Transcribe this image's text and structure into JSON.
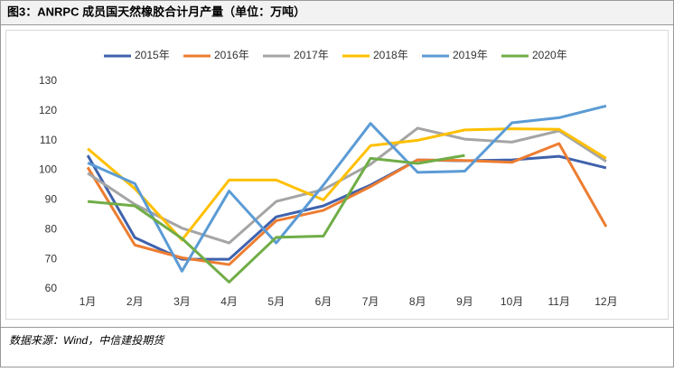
{
  "chart_data": {
    "type": "line",
    "title": "图3：ANRPC 成员国天然橡胶合计月产量（单位：万吨）",
    "source": "数据来源：Wind，中信建投期货",
    "categories": [
      "1月",
      "2月",
      "3月",
      "4月",
      "5月",
      "6月",
      "7月",
      "8月",
      "9月",
      "10月",
      "11月",
      "12月"
    ],
    "series": [
      {
        "name": "2015年",
        "color": "#3f62ad",
        "values": [
          105,
          77.3,
          70,
          70,
          84.3,
          88,
          95,
          103.5,
          103.2,
          103.5,
          104.7,
          100.8
        ]
      },
      {
        "name": "2016年",
        "color": "#ed7d31",
        "values": [
          101,
          74.8,
          70.5,
          68.2,
          83,
          86.5,
          94.5,
          103.5,
          103.3,
          102.7,
          109,
          81
        ]
      },
      {
        "name": "2017年",
        "color": "#a5a5a5",
        "values": [
          99,
          88.5,
          80.5,
          75.5,
          89.5,
          93.5,
          102,
          114.2,
          110.5,
          109.5,
          113.3,
          103
        ]
      },
      {
        "name": "2018年",
        "color": "#ffc000",
        "values": [
          107.3,
          93.8,
          76.5,
          96.7,
          96.7,
          90,
          108.3,
          110.1,
          113.6,
          114,
          113.8,
          104
        ]
      },
      {
        "name": "2019年",
        "color": "#5b9bd5",
        "values": [
          102.5,
          95.5,
          66,
          93,
          75.5,
          95,
          115.8,
          99.3,
          99.7,
          116,
          117.7,
          121.7
        ]
      },
      {
        "name": "2020年",
        "color": "#70ad47",
        "values": [
          89.5,
          88,
          77,
          62.3,
          77.4,
          77.8,
          104,
          102.3,
          105,
          null,
          null,
          null
        ]
      }
    ],
    "ylim": [
      60,
      130
    ],
    "yticks": [
      60,
      70,
      80,
      90,
      100,
      110,
      120,
      130
    ]
  }
}
